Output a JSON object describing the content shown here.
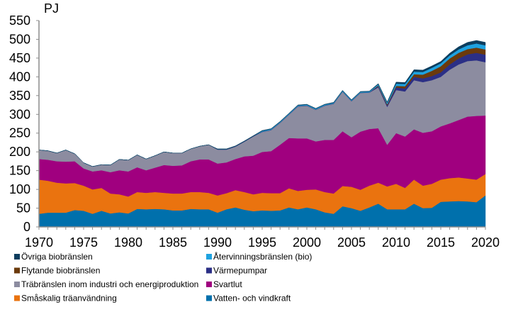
{
  "chart_data": {
    "type": "area",
    "stacked": true,
    "title": "",
    "ylabel": "PJ",
    "xlabel": "",
    "ylim": [
      0,
      550
    ],
    "yticks": [
      0,
      50,
      100,
      150,
      200,
      250,
      300,
      350,
      400,
      450,
      500,
      550
    ],
    "xlim": [
      1970,
      2020
    ],
    "xticks": [
      1970,
      1975,
      1980,
      1985,
      1990,
      1995,
      2000,
      2005,
      2010,
      2015,
      2020
    ],
    "grid": false,
    "legend_position": "bottom",
    "x": [
      1970,
      1971,
      1972,
      1973,
      1974,
      1975,
      1976,
      1977,
      1978,
      1979,
      1980,
      1981,
      1982,
      1983,
      1984,
      1985,
      1986,
      1987,
      1988,
      1989,
      1990,
      1991,
      1992,
      1993,
      1994,
      1995,
      1996,
      1997,
      1998,
      1999,
      2000,
      2001,
      2002,
      2003,
      2004,
      2005,
      2006,
      2007,
      2008,
      2009,
      2010,
      2011,
      2012,
      2013,
      2014,
      2015,
      2016,
      2017,
      2018,
      2019,
      2020
    ],
    "series": [
      {
        "name": "Vatten- och vindkraft",
        "color": "#0070ac",
        "values": [
          35,
          38,
          38,
          38,
          45,
          43,
          35,
          43,
          36,
          39,
          36,
          48,
          47,
          48,
          47,
          44,
          44,
          48,
          47,
          47,
          38,
          47,
          52,
          46,
          42,
          44,
          43,
          44,
          52,
          47,
          52,
          47,
          39,
          35,
          55,
          50,
          43,
          52,
          62,
          47,
          47,
          47,
          62,
          50,
          51,
          67,
          68,
          69,
          68,
          66,
          84
        ]
      },
      {
        "name": "Småskalig träanvändning",
        "color": "#ea730f",
        "values": [
          91,
          85,
          80,
          78,
          72,
          67,
          65,
          61,
          53,
          48,
          45,
          45,
          44,
          45,
          44,
          45,
          45,
          45,
          46,
          44,
          46,
          43,
          46,
          47,
          45,
          47,
          47,
          46,
          51,
          49,
          47,
          53,
          54,
          54,
          54,
          57,
          56,
          58,
          56,
          61,
          68,
          57,
          64,
          60,
          64,
          59,
          62,
          63,
          61,
          60,
          57
        ]
      },
      {
        "name": "Svartlut",
        "color": "#a0007f",
        "values": [
          55,
          56,
          57,
          58,
          58,
          46,
          48,
          47,
          57,
          64,
          67,
          66,
          60,
          65,
          74,
          74,
          75,
          82,
          87,
          89,
          85,
          82,
          83,
          95,
          103,
          109,
          112,
          129,
          134,
          140,
          137,
          128,
          139,
          143,
          146,
          132,
          155,
          151,
          145,
          111,
          135,
          137,
          134,
          141,
          140,
          142,
          146,
          153,
          165,
          170,
          156
        ]
      },
      {
        "name": "Träbränslen inom industri och energiproduktion",
        "color": "#8c8ca0",
        "values": [
          24,
          24,
          22,
          31,
          20,
          15,
          13,
          15,
          19,
          29,
          30,
          33,
          30,
          32,
          35,
          34,
          33,
          33,
          35,
          39,
          37,
          34,
          33,
          39,
          51,
          53,
          56,
          58,
          62,
          85,
          87,
          84,
          91,
          96,
          105,
          96,
          103,
          97,
          109,
          101,
          115,
          120,
          131,
          135,
          136,
          132,
          143,
          148,
          148,
          148,
          142
        ]
      },
      {
        "name": "Värmepumpar",
        "color": "#2b2f86",
        "values": [
          0,
          0,
          0,
          0,
          0,
          0,
          0,
          0,
          0,
          0,
          0,
          0,
          0,
          0,
          0,
          0,
          0,
          0,
          0,
          0,
          1,
          1,
          1,
          1,
          1,
          1,
          1,
          1,
          1,
          1,
          1,
          1,
          1,
          1,
          1,
          1,
          1,
          1,
          3,
          4,
          7,
          8,
          9,
          10,
          11,
          12,
          14,
          16,
          18,
          20,
          20
        ]
      },
      {
        "name": "Flytande biobränslen",
        "color": "#6b3a0c",
        "values": [
          0,
          0,
          0,
          0,
          0,
          0,
          0,
          0,
          0,
          0,
          0,
          0,
          0,
          0,
          0,
          0,
          0,
          0,
          0,
          0,
          0,
          0,
          0,
          0,
          0,
          0,
          0,
          0,
          0,
          0,
          0,
          0,
          0,
          0,
          0,
          0,
          0,
          0,
          2,
          3,
          4,
          6,
          7,
          10,
          14,
          16,
          16,
          15,
          14,
          14,
          14
        ]
      },
      {
        "name": "Återvinningsbränslen (bio)",
        "color": "#1ea2e0",
        "values": [
          0,
          0,
          0,
          0,
          0,
          0,
          0,
          0,
          0,
          0,
          0,
          0,
          0,
          0,
          0,
          0,
          0,
          0,
          0,
          0,
          0,
          0,
          0,
          0,
          0,
          2,
          2,
          2,
          2,
          2,
          2,
          2,
          2,
          2,
          2,
          2,
          2,
          2,
          3,
          4,
          6,
          6,
          7,
          7,
          8,
          8,
          8,
          9,
          10,
          11,
          11
        ]
      },
      {
        "name": "Övriga biobränslen",
        "color": "#0c3d5e",
        "values": [
          0,
          0,
          0,
          0,
          0,
          0,
          0,
          0,
          0,
          0,
          0,
          0,
          0,
          0,
          0,
          0,
          0,
          0,
          0,
          0,
          1,
          1,
          1,
          1,
          1,
          1,
          1,
          1,
          1,
          1,
          1,
          1,
          1,
          1,
          1,
          1,
          1,
          1,
          2,
          2,
          4,
          4,
          5,
          5,
          5,
          5,
          6,
          7,
          8,
          8,
          8
        ]
      }
    ],
    "legend_order": [
      7,
      6,
      5,
      4,
      3,
      2,
      1,
      0
    ]
  }
}
